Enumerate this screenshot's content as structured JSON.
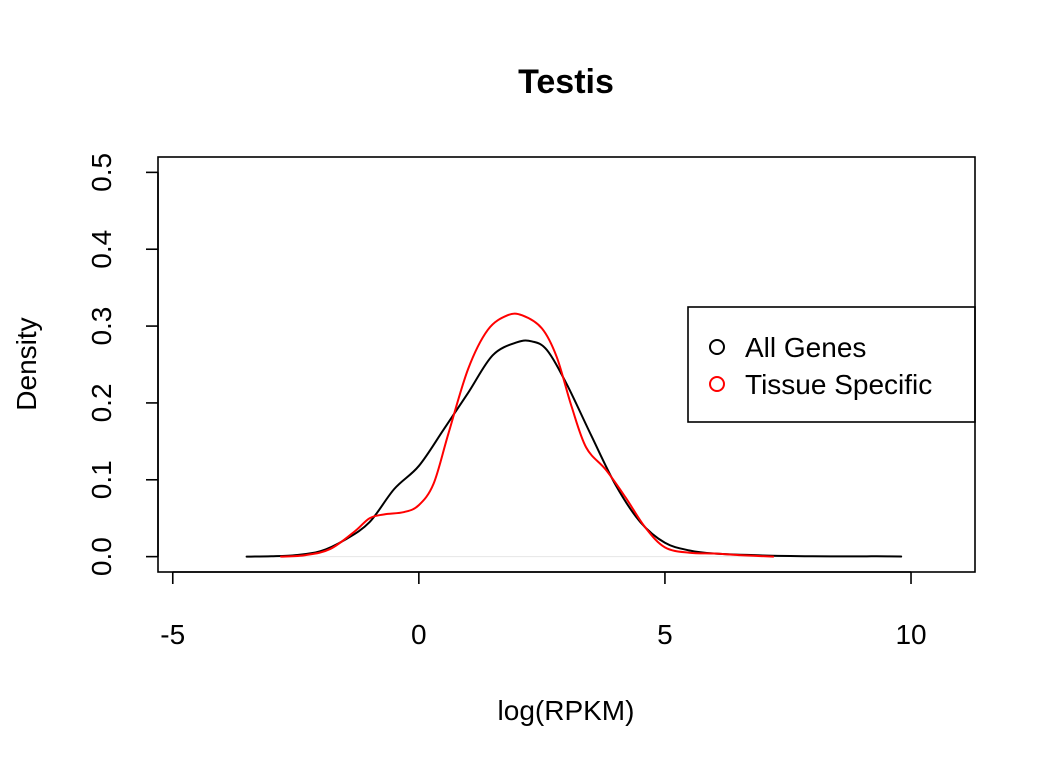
{
  "chart_data": {
    "type": "line",
    "title": "Testis",
    "xlabel": "log(RPKM)",
    "ylabel": "Density",
    "xlim": [
      -5.3,
      11.3
    ],
    "ylim": [
      -0.02,
      0.52
    ],
    "x_ticks": [
      -5,
      0,
      5,
      10
    ],
    "y_ticks": [
      0.0,
      0.1,
      0.2,
      0.3,
      0.4,
      0.5
    ],
    "x_tick_labels": [
      "-5",
      "0",
      "5",
      "10"
    ],
    "y_tick_labels": [
      "0.0",
      "0.1",
      "0.2",
      "0.3",
      "0.4",
      "0.5"
    ],
    "grid": false,
    "baseline": true,
    "legend": {
      "position": "right"
    },
    "series": [
      {
        "name": "All Genes",
        "color": "#000000",
        "points": [
          [
            -3.5,
            0.0
          ],
          [
            -3.0,
            0.0005
          ],
          [
            -2.5,
            0.002
          ],
          [
            -2.0,
            0.007
          ],
          [
            -1.5,
            0.022
          ],
          [
            -1.0,
            0.045
          ],
          [
            -0.5,
            0.088
          ],
          [
            0.0,
            0.118
          ],
          [
            0.5,
            0.165
          ],
          [
            1.0,
            0.213
          ],
          [
            1.5,
            0.262
          ],
          [
            2.0,
            0.279
          ],
          [
            2.3,
            0.28
          ],
          [
            2.6,
            0.269
          ],
          [
            3.0,
            0.225
          ],
          [
            3.5,
            0.158
          ],
          [
            4.0,
            0.093
          ],
          [
            4.5,
            0.045
          ],
          [
            5.0,
            0.018
          ],
          [
            5.5,
            0.008
          ],
          [
            6.0,
            0.004
          ],
          [
            7.0,
            0.0015
          ],
          [
            8.0,
            0.0005
          ],
          [
            9.0,
            0.0003
          ],
          [
            9.3,
            0.0005
          ],
          [
            9.8,
            0.0001
          ]
        ]
      },
      {
        "name": "Tissue Specific",
        "color": "#ff0000",
        "points": [
          [
            -2.8,
            0.0
          ],
          [
            -2.3,
            0.002
          ],
          [
            -1.8,
            0.01
          ],
          [
            -1.3,
            0.033
          ],
          [
            -1.0,
            0.05
          ],
          [
            -0.7,
            0.055
          ],
          [
            -0.3,
            0.058
          ],
          [
            0.0,
            0.067
          ],
          [
            0.3,
            0.095
          ],
          [
            0.6,
            0.16
          ],
          [
            1.0,
            0.244
          ],
          [
            1.4,
            0.295
          ],
          [
            1.8,
            0.314
          ],
          [
            2.1,
            0.314
          ],
          [
            2.5,
            0.297
          ],
          [
            2.8,
            0.26
          ],
          [
            3.1,
            0.196
          ],
          [
            3.4,
            0.142
          ],
          [
            3.8,
            0.113
          ],
          [
            4.2,
            0.077
          ],
          [
            4.6,
            0.038
          ],
          [
            5.0,
            0.012
          ],
          [
            5.5,
            0.005
          ],
          [
            6.0,
            0.004
          ],
          [
            6.5,
            0.002
          ],
          [
            7.2,
            0.0
          ]
        ]
      }
    ]
  }
}
